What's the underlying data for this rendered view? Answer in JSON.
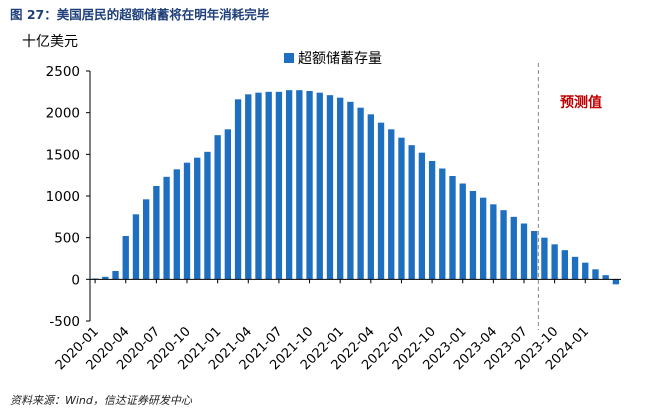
{
  "figure": {
    "title": "图 27：美国居民的超额储蓄将在明年消耗完毕",
    "source": "资料来源：Wind，信达证券研发中心"
  },
  "chart_data": {
    "type": "bar",
    "ylabel": "十亿美元",
    "ylim": [
      -500,
      2500
    ],
    "yticks": [
      2500,
      2000,
      1500,
      1000,
      500,
      0,
      -500
    ],
    "grid": false,
    "legend_position": "top-center",
    "series": [
      {
        "name": "超额储蓄存量",
        "color": "#1f6fc0",
        "values": [
          10,
          30,
          100,
          520,
          780,
          960,
          1120,
          1230,
          1320,
          1400,
          1460,
          1530,
          1730,
          1800,
          2160,
          2220,
          2240,
          2250,
          2250,
          2270,
          2270,
          2260,
          2240,
          2210,
          2180,
          2130,
          2060,
          1980,
          1880,
          1800,
          1700,
          1610,
          1520,
          1420,
          1330,
          1240,
          1150,
          1060,
          980,
          900,
          830,
          750,
          670,
          580,
          500,
          420,
          350,
          270,
          200,
          120,
          50,
          -60
        ]
      }
    ],
    "x_tick_labels": [
      "2020-01",
      "2020-04",
      "2020-07",
      "2020-10",
      "2021-01",
      "2021-04",
      "2021-07",
      "2021-10",
      "2022-01",
      "2022-04",
      "2022-07",
      "2022-10",
      "2023-01",
      "2023-04",
      "2023-07",
      "2023-10",
      "2024-01"
    ],
    "x_tick_every": 3,
    "forecast_divider_after_index": 43,
    "annotation": {
      "text": "预测值",
      "color": "#c00000"
    }
  }
}
